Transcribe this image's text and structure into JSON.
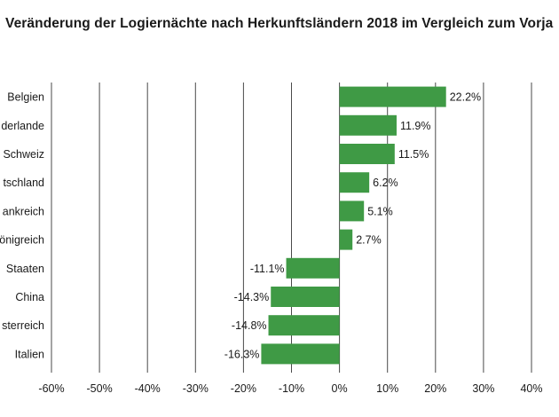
{
  "chart_data": {
    "type": "bar",
    "orientation": "horizontal",
    "title": "Veränderung der Logiernächte nach Herkunftsländern 2018 im Vergleich zum Vorja",
    "categories": [
      "Belgien",
      "derlande",
      "Schweiz",
      "tschland",
      "ankreich",
      "önigreich",
      "Staaten",
      "China",
      "sterreich",
      "Italien"
    ],
    "values": [
      22.2,
      11.9,
      11.5,
      6.2,
      5.1,
      2.7,
      -11.1,
      -14.3,
      -14.8,
      -16.3
    ],
    "value_labels": [
      "22.2%",
      "11.9%",
      "11.5%",
      "6.2%",
      "5.1%",
      "2.7%",
      "-11.1%",
      "-14.3%",
      "-14.8%",
      "-16.3%"
    ],
    "xlim": [
      -60,
      40
    ],
    "xticks": [
      -60,
      -50,
      -40,
      -30,
      -20,
      -10,
      0,
      10,
      20,
      30,
      40
    ],
    "xtick_labels": [
      "-60%",
      "-50%",
      "-40%",
      "-30%",
      "-20%",
      "-10%",
      "0%",
      "10%",
      "20%",
      "30%",
      "40%"
    ],
    "xlabel": "",
    "ylabel": "",
    "grid": "vertical",
    "bar_color": "#3f9a45",
    "grid_color": "#4a4a4a"
  }
}
